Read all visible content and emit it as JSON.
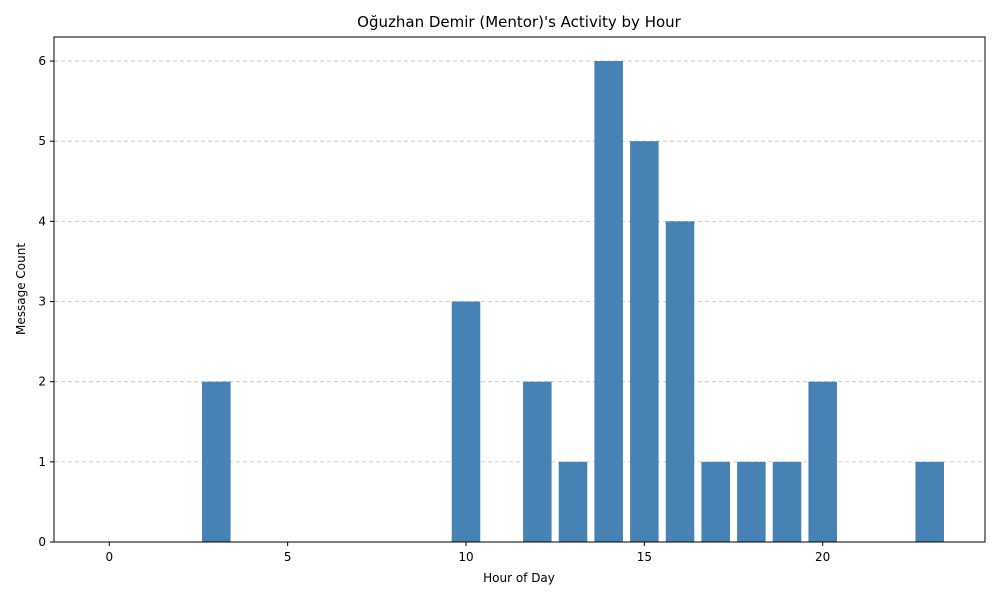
{
  "chart_data": {
    "type": "bar",
    "title": "Oğuzhan Demir (Mentor)'s Activity by Hour",
    "xlabel": "Hour of Day",
    "ylabel": "Message Count",
    "x": [
      3,
      10,
      12,
      13,
      14,
      15,
      16,
      17,
      18,
      19,
      20,
      23
    ],
    "values": [
      2,
      3,
      2,
      1,
      6,
      5,
      4,
      1,
      1,
      1,
      2,
      1
    ],
    "xlim": [
      -1.55,
      24.55
    ],
    "ylim": [
      0,
      6.3
    ],
    "xticks": [
      0,
      5,
      10,
      15,
      20
    ],
    "yticks": [
      0,
      1,
      2,
      3,
      4,
      5,
      6
    ],
    "bar_color": "#4682b4",
    "grid": {
      "y": true,
      "x": false,
      "style": "dashed",
      "color": "#c0c0c0"
    }
  }
}
